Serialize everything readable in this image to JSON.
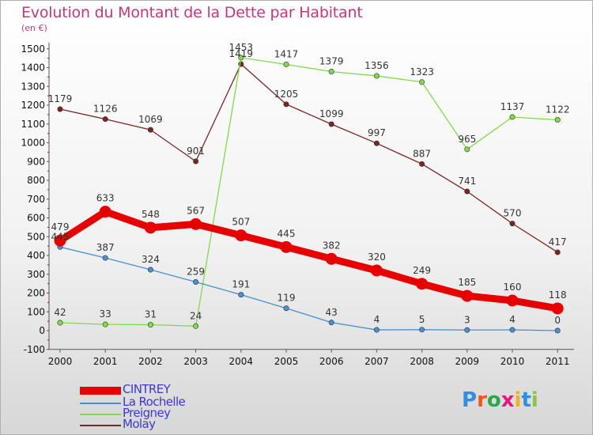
{
  "title": "Evolution du Montant de la Dette par Habitant",
  "subtitle": "(en €)",
  "logo": {
    "text": "Proxiti",
    "letters": [
      "P",
      "r",
      "o",
      "x",
      "i",
      "t",
      "i"
    ],
    "colors": [
      "#2f8de4",
      "#e85b1c",
      "#2aa84a",
      "#e01a7b",
      "#f2b21a",
      "#2f8de4",
      "#8cc63f"
    ]
  },
  "chart_data": {
    "type": "line",
    "title": "Evolution du Montant de la Dette par Habitant",
    "subtitle": "(en €)",
    "x": [
      "2000",
      "2001",
      "2002",
      "2003",
      "2004",
      "2005",
      "2006",
      "2007",
      "2008",
      "2009",
      "2010",
      "2011"
    ],
    "ylim": [
      -100,
      1500
    ],
    "yticks": [
      "-100",
      "0",
      "100",
      "200",
      "300",
      "400",
      "500",
      "600",
      "700",
      "800",
      "900",
      "1000",
      "1100",
      "1200",
      "1300",
      "1400",
      "1500"
    ],
    "grid": false,
    "legend_position": "bottom-left",
    "series": [
      {
        "name": "CINTREY",
        "color": "#e60000",
        "values": [
          479,
          633,
          548,
          567,
          507,
          445,
          382,
          320,
          249,
          185,
          160,
          118
        ],
        "labels": [
          "479",
          "633",
          "548",
          "567",
          "507",
          "445",
          "382",
          "320",
          "249",
          "185",
          "160",
          "118"
        ]
      },
      {
        "name": "La Rochelle",
        "color": "#4a8fd0",
        "values": [
          445,
          387,
          324,
          259,
          191,
          119,
          43,
          4,
          5,
          3,
          4,
          0
        ],
        "labels": [
          "445",
          "387",
          "324",
          "259",
          "191",
          "119",
          "43",
          "4",
          "5",
          "3",
          "4",
          "0"
        ]
      },
      {
        "name": "Preigney",
        "color": "#84d84f",
        "values": [
          42,
          33,
          31,
          24,
          1453,
          1417,
          1379,
          1356,
          1323,
          965,
          1137,
          1122
        ],
        "labels": [
          "42",
          "33",
          "31",
          "24",
          "1453",
          "1417",
          "1379",
          "1356",
          "1323",
          "965",
          "1137",
          "1122"
        ]
      },
      {
        "name": "Molay",
        "color": "#7a2525",
        "values": [
          1179,
          1126,
          1069,
          901,
          1419,
          1205,
          1099,
          997,
          887,
          741,
          570,
          417
        ],
        "labels": [
          "1179",
          "1126",
          "1069",
          "901",
          "1419",
          "1205",
          "1099",
          "997",
          "887",
          "741",
          "570",
          "417"
        ]
      }
    ]
  }
}
